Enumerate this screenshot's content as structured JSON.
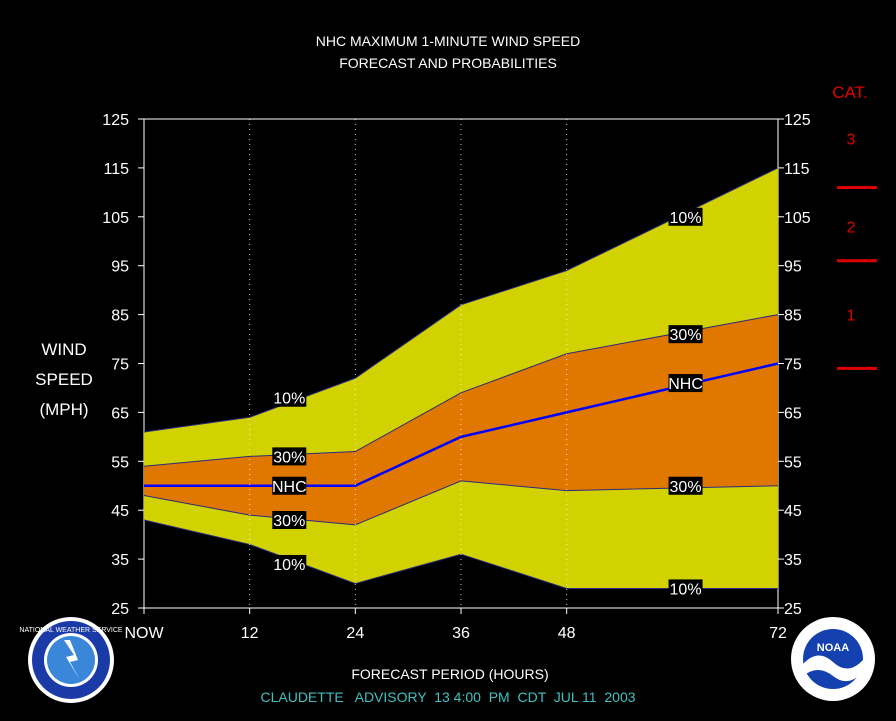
{
  "chart_data": {
    "type": "area",
    "title": "NHC MAXIMUM 1-MINUTE WIND SPEED",
    "subtitle": "FORECAST AND PROBABILITIES",
    "ylabel_lines": [
      "WIND",
      "SPEED",
      "(MPH)"
    ],
    "xlabel": "FORECAST PERIOD (HOURS)",
    "advisory": "CLAUDETTE   ADVISORY  13 4:00  PM  CDT  JUL 11  2003",
    "xlim": [
      0,
      72
    ],
    "ylim": [
      25,
      125
    ],
    "y_ticks": [
      25,
      35,
      45,
      55,
      65,
      75,
      85,
      95,
      105,
      115,
      125
    ],
    "x_ticks": [
      0,
      12,
      24,
      36,
      48,
      72
    ],
    "x_tick_labels": [
      "NOW",
      "12",
      "24",
      "36",
      "48",
      "72"
    ],
    "x": [
      0,
      12,
      24,
      36,
      48,
      72
    ],
    "series": [
      {
        "name": "10%",
        "values": [
          61,
          64,
          72,
          87,
          94,
          115
        ]
      },
      {
        "name": "30%",
        "values": [
          54,
          56,
          57,
          69,
          77,
          85
        ]
      },
      {
        "name": "NHC",
        "values": [
          50,
          50,
          50,
          60,
          65,
          75
        ]
      },
      {
        "name": "30%",
        "values": [
          48,
          44,
          42,
          51,
          49,
          50
        ]
      },
      {
        "name": "10%",
        "values": [
          43,
          38,
          30,
          36,
          29,
          29
        ]
      }
    ],
    "labels": [
      {
        "text": "10%",
        "x": 16.5,
        "y": 68
      },
      {
        "text": "30%",
        "x": 16.5,
        "y": 56
      },
      {
        "text": "NHC",
        "x": 16.5,
        "y": 50
      },
      {
        "text": "30%",
        "x": 16.5,
        "y": 43
      },
      {
        "text": "10%",
        "x": 16.5,
        "y": 34
      },
      {
        "text": "10%",
        "x": 61.5,
        "y": 105
      },
      {
        "text": "30%",
        "x": 61.5,
        "y": 81
      },
      {
        "text": "NHC",
        "x": 61.5,
        "y": 71
      },
      {
        "text": "30%",
        "x": 61.5,
        "y": 50
      },
      {
        "text": "10%",
        "x": 61.5,
        "y": 29
      }
    ],
    "category_title": "CAT.",
    "categories": [
      {
        "label": "3",
        "y": 121
      },
      {
        "label": "2",
        "y": 103
      },
      {
        "label": "1",
        "y": 85
      }
    ],
    "category_thresholds": [
      111,
      96,
      74
    ],
    "colors": {
      "outer_band": "#d2d200",
      "inner_band": "#e07800",
      "nhc_line": "#0000ff",
      "category": "#e00000",
      "advisory": "#40c0c0",
      "background": "#000000"
    }
  },
  "logos": {
    "left": "NATIONAL WEATHER SERVICE",
    "right": "NOAA"
  }
}
